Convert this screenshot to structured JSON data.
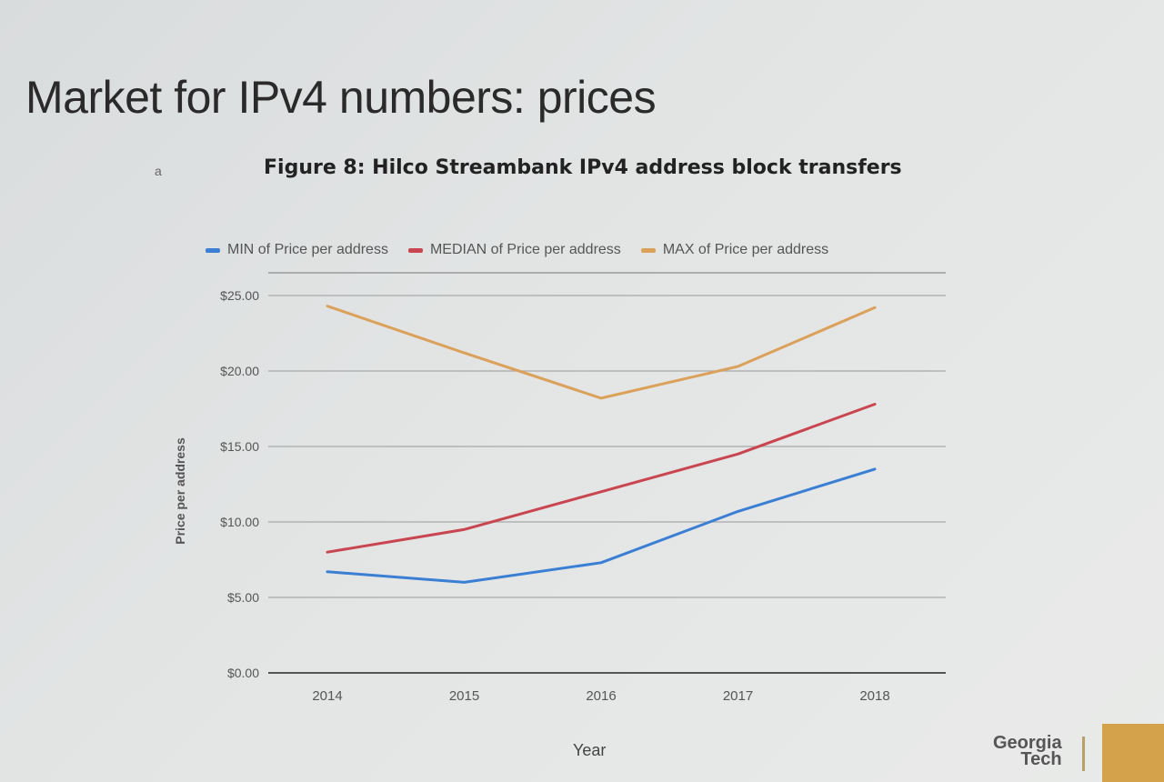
{
  "slide": {
    "title": "Market for IPv4 numbers: prices",
    "cursor_glyph": "a"
  },
  "logo": {
    "line1": "Georgia",
    "line2": "Tech"
  },
  "chart_data": {
    "type": "line",
    "title": "Figure 8: Hilco Streambank IPv4 address block transfers",
    "xlabel": "Year",
    "ylabel": "Price per address",
    "categories": [
      "2014",
      "2015",
      "2016",
      "2017",
      "2018"
    ],
    "yticks": [
      "$0.00",
      "$5.00",
      "$10.00",
      "$15.00",
      "$20.00",
      "$25.00"
    ],
    "ylim": [
      0,
      25
    ],
    "grid": true,
    "legend_position": "top",
    "series": [
      {
        "name": "MIN of Price per address",
        "color": "#3b7fd4",
        "values": [
          6.7,
          6.0,
          7.3,
          10.7,
          13.5
        ]
      },
      {
        "name": "MEDIAN of Price per address",
        "color": "#c94550",
        "values": [
          8.0,
          9.5,
          12.0,
          14.5,
          17.8
        ]
      },
      {
        "name": "MAX of Price per address",
        "color": "#dba15a",
        "values": [
          24.3,
          21.2,
          18.2,
          20.3,
          24.2
        ]
      }
    ]
  }
}
